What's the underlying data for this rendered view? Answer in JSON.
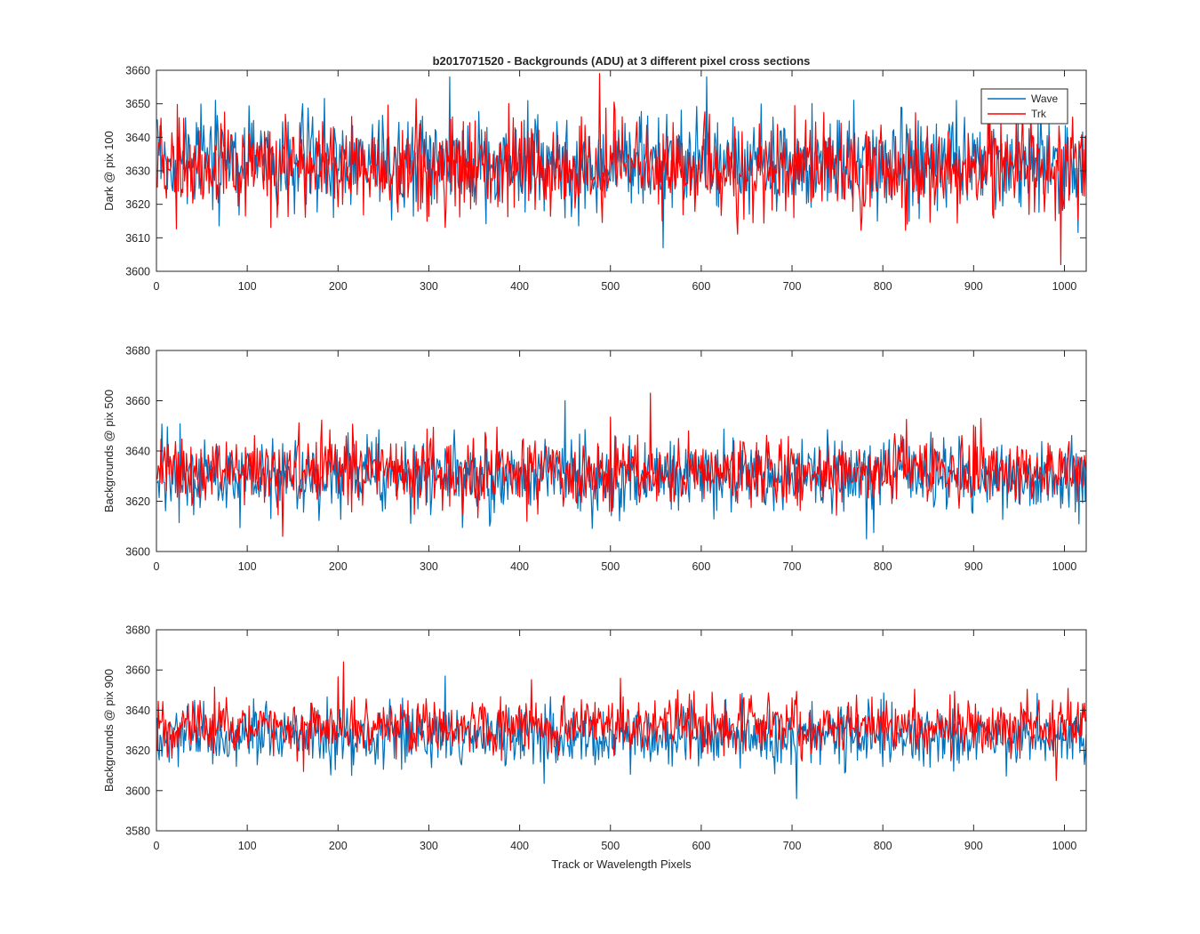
{
  "figure_title": "b2017071520 - Backgrounds (ADU) at 3 different pixel cross sections",
  "colors": {
    "wave": "#0072BD",
    "trk": "#FF0000",
    "axes": "#262626"
  },
  "chart_data": [
    {
      "type": "line",
      "title": "b2017071520 - Backgrounds (ADU) at 3 different pixel cross sections",
      "xlabel": "",
      "ylabel": "Dark @ pix 100",
      "xlim": [
        0,
        1024
      ],
      "ylim": [
        3600,
        3660
      ],
      "xticks": [
        0,
        100,
        200,
        300,
        400,
        500,
        600,
        700,
        800,
        900,
        1000
      ],
      "yticks": [
        3600,
        3610,
        3620,
        3630,
        3640,
        3650,
        3660
      ],
      "legend": {
        "position": "top-right",
        "entries": [
          "Wave",
          "Trk"
        ]
      },
      "grid": false,
      "series": [
        {
          "name": "Wave",
          "color": "#0072BD",
          "n_points": 1024,
          "mean": 3632,
          "std": 7,
          "min": 3607,
          "max": 3658
        },
        {
          "name": "Trk",
          "color": "#FF0000",
          "n_points": 1024,
          "mean": 3631,
          "std": 7,
          "min": 3602,
          "max": 3659
        }
      ]
    },
    {
      "type": "line",
      "title": "",
      "xlabel": "",
      "ylabel": "Backgrounds @ pix 500",
      "xlim": [
        0,
        1024
      ],
      "ylim": [
        3600,
        3680
      ],
      "xticks": [
        0,
        100,
        200,
        300,
        400,
        500,
        600,
        700,
        800,
        900,
        1000
      ],
      "yticks": [
        3600,
        3620,
        3640,
        3660,
        3680
      ],
      "grid": false,
      "series": [
        {
          "name": "Wave",
          "color": "#0072BD",
          "n_points": 1024,
          "mean": 3630,
          "std": 7,
          "min": 3605,
          "max": 3660
        },
        {
          "name": "Trk",
          "color": "#FF0000",
          "n_points": 1024,
          "mean": 3632,
          "std": 7,
          "min": 3606,
          "max": 3663
        }
      ]
    },
    {
      "type": "line",
      "title": "",
      "xlabel": "Track or Wavelength Pixels",
      "ylabel": "Backgrounds @ pix 900",
      "xlim": [
        0,
        1024
      ],
      "ylim": [
        3580,
        3680
      ],
      "xticks": [
        0,
        100,
        200,
        300,
        400,
        500,
        600,
        700,
        800,
        900,
        1000
      ],
      "yticks": [
        3580,
        3600,
        3620,
        3640,
        3660,
        3680
      ],
      "grid": false,
      "series": [
        {
          "name": "Wave",
          "color": "#0072BD",
          "n_points": 1024,
          "mean": 3627,
          "std": 7,
          "min": 3596,
          "max": 3657
        },
        {
          "name": "Trk",
          "color": "#FF0000",
          "n_points": 1024,
          "mean": 3632,
          "std": 7,
          "min": 3605,
          "max": 3664
        }
      ]
    }
  ]
}
